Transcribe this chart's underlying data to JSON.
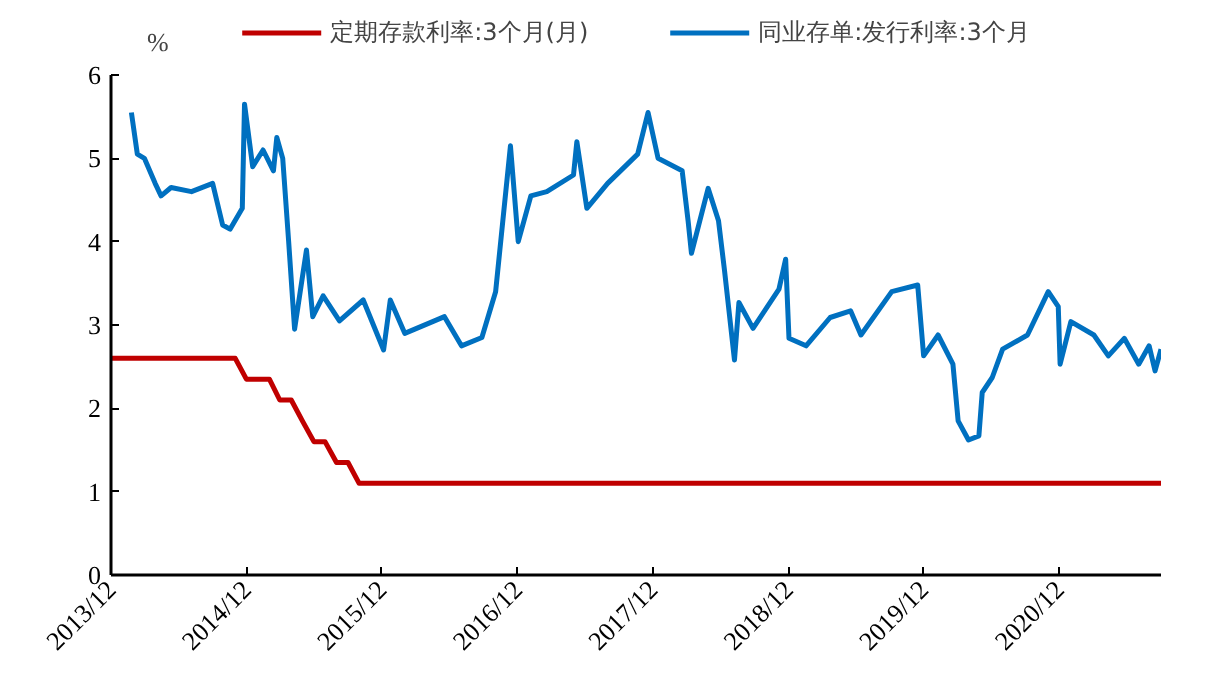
{
  "chart_data": {
    "type": "line",
    "ylabel": "%",
    "legend": "top",
    "grid": false,
    "marker": "none",
    "line_style": "solid",
    "xlim": [
      "2013-12-01",
      "2021-09-01"
    ],
    "ylim": [
      0,
      6
    ],
    "yticks": [
      0,
      1,
      2,
      3,
      4,
      5,
      6
    ],
    "xticks": [
      {
        "value": "2013-12-01",
        "label": "2013/12"
      },
      {
        "value": "2014-12-01",
        "label": "2014/12"
      },
      {
        "value": "2015-12-01",
        "label": "2015/12"
      },
      {
        "value": "2016-12-01",
        "label": "2016/12"
      },
      {
        "value": "2017-12-01",
        "label": "2017/12"
      },
      {
        "value": "2018-12-01",
        "label": "2018/12"
      },
      {
        "value": "2019-12-01",
        "label": "2019/12"
      },
      {
        "value": "2020-12-01",
        "label": "2020/12"
      }
    ],
    "series": [
      {
        "name": "定期存款利率:3个月(月)",
        "color": "#c00000",
        "x": [
          "2013-12-01",
          "2014-11-01",
          "2014-12-01",
          "2015-02-01",
          "2015-03-01",
          "2015-04-01",
          "2015-05-01",
          "2015-06-01",
          "2015-07-01",
          "2015-08-01",
          "2015-09-01",
          "2015-10-01",
          "2021-09-01"
        ],
        "values": [
          2.6,
          2.6,
          2.35,
          2.35,
          2.1,
          2.1,
          1.85,
          1.6,
          1.6,
          1.35,
          1.35,
          1.1,
          1.1
        ]
      },
      {
        "name": "同业存单:发行利率:3个月",
        "color": "#0070c0",
        "x": [
          "2014-01-25",
          "2014-02-10",
          "2014-03-01",
          "2014-03-30",
          "2014-04-15",
          "2014-05-12",
          "2014-07-06",
          "2014-09-01",
          "2014-09-28",
          "2014-10-18",
          "2014-11-20",
          "2014-11-26",
          "2014-12-18",
          "2015-01-15",
          "2015-02-12",
          "2015-02-21",
          "2015-03-09",
          "2015-03-25",
          "2015-04-10",
          "2015-05-12",
          "2015-05-29",
          "2015-06-26",
          "2015-08-09",
          "2015-10-12",
          "2015-12-06",
          "2015-12-24",
          "2016-02-01",
          "2016-04-21",
          "2016-05-18",
          "2016-07-03",
          "2016-08-27",
          "2016-10-03",
          "2016-11-12",
          "2016-12-03",
          "2017-01-06",
          "2017-02-18",
          "2017-05-01",
          "2017-05-10",
          "2017-06-06",
          "2017-08-01",
          "2017-10-21",
          "2017-11-18",
          "2017-12-15",
          "2018-02-18",
          "2018-03-06",
          "2018-03-15",
          "2018-04-29",
          "2018-05-27",
          "2018-06-12",
          "2018-07-09",
          "2018-07-21",
          "2018-08-28",
          "2018-11-06",
          "2018-11-24",
          "2018-12-03",
          "2019-01-18",
          "2019-03-24",
          "2019-05-18",
          "2019-06-15",
          "2019-09-06",
          "2019-11-15",
          "2019-12-01",
          "2020-01-09",
          "2020-02-18",
          "2020-03-03",
          "2020-03-31",
          "2020-04-28",
          "2020-05-07",
          "2020-06-03",
          "2020-07-01",
          "2020-09-06",
          "2020-11-01",
          "2020-11-28",
          "2020-12-03",
          "2021-01-01",
          "2021-03-04",
          "2021-04-12",
          "2021-05-25",
          "2021-07-03",
          "2021-07-31",
          "2021-08-16",
          "2021-09-01"
        ],
        "values": [
          5.55,
          5.05,
          5.0,
          4.7,
          4.55,
          4.65,
          4.6,
          4.7,
          4.2,
          4.15,
          4.4,
          5.65,
          4.9,
          5.1,
          4.85,
          5.25,
          5.0,
          4.0,
          2.95,
          3.9,
          3.1,
          3.35,
          3.05,
          3.3,
          2.7,
          3.3,
          2.9,
          3.05,
          3.1,
          2.75,
          2.85,
          3.4,
          5.15,
          4.0,
          4.55,
          4.6,
          4.8,
          5.2,
          4.4,
          4.7,
          5.05,
          5.55,
          5.0,
          4.85,
          4.25,
          3.86,
          4.64,
          4.25,
          3.66,
          2.58,
          3.27,
          2.96,
          3.43,
          3.79,
          2.84,
          2.75,
          3.09,
          3.17,
          2.88,
          3.4,
          3.48,
          2.63,
          2.88,
          2.53,
          1.85,
          1.62,
          1.67,
          2.19,
          2.37,
          2.71,
          2.88,
          3.4,
          3.22,
          2.53,
          3.04,
          2.88,
          2.63,
          2.84,
          2.53,
          2.75,
          2.45,
          2.71
        ]
      }
    ]
  }
}
